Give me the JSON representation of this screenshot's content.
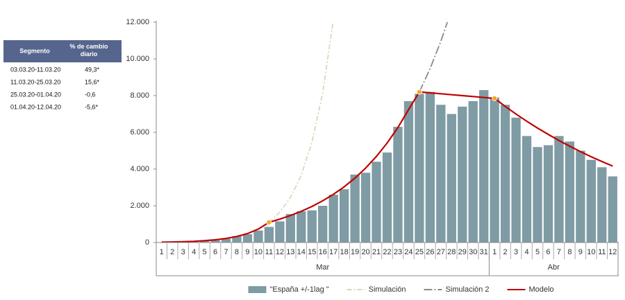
{
  "table": {
    "header": [
      "Segmento",
      "% de cambio diario"
    ],
    "rows": [
      [
        "03.03.20-11.03.20",
        "49,3*"
      ],
      [
        "11.03.20-25.03.20",
        "15,6*"
      ],
      [
        "25.03.20-01.04.20",
        "-0,6"
      ],
      [
        "01.04.20-12.04.20",
        "-5,6*"
      ]
    ]
  },
  "chart_data": {
    "type": "bar",
    "categories": [
      "1",
      "2",
      "3",
      "4",
      "5",
      "6",
      "7",
      "8",
      "9",
      "10",
      "11",
      "12",
      "13",
      "14",
      "15",
      "16",
      "17",
      "18",
      "19",
      "20",
      "21",
      "22",
      "23",
      "24",
      "25",
      "26",
      "27",
      "28",
      "29",
      "30",
      "31",
      "1",
      "2",
      "3",
      "4",
      "5",
      "6",
      "7",
      "8",
      "9",
      "10",
      "11",
      "12"
    ],
    "x_groups": [
      {
        "label": "Mar",
        "count": 31
      },
      {
        "label": "Abr",
        "count": 12
      }
    ],
    "ylim": [
      0,
      12000
    ],
    "yticks": [
      0,
      {
        "value": 2000,
        "label": "2.000"
      },
      {
        "value": 4000,
        "label": "4.000"
      },
      {
        "value": 6000,
        "label": "6.000"
      },
      {
        "value": 8000,
        "label": "8.000"
      },
      {
        "value": 10000,
        "label": "10.000"
      },
      {
        "value": 12000,
        "label": "12.000"
      }
    ],
    "series": [
      {
        "name": "\"España +/-1lag \"",
        "type": "bar",
        "color": "#7f9ba4",
        "values": [
          10,
          20,
          30,
          50,
          80,
          120,
          200,
          350,
          450,
          650,
          850,
          1150,
          1550,
          1700,
          1750,
          2000,
          2600,
          2900,
          3700,
          3800,
          4400,
          4900,
          6300,
          7700,
          8100,
          8200,
          7500,
          7000,
          7400,
          7700,
          8300,
          7900,
          7500,
          6800,
          5800,
          5200,
          5300,
          5800,
          5500,
          5000,
          4500,
          4100,
          3600
        ]
      },
      {
        "name": "Simulación",
        "type": "line",
        "color": "#d8d9b8",
        "dash": "7 3 2 3",
        "values": [
          null,
          null,
          null,
          null,
          null,
          null,
          null,
          null,
          null,
          null,
          1100,
          1640,
          2450,
          3660,
          5460,
          8150,
          12170,
          null,
          null,
          null,
          null,
          null,
          null,
          null,
          null,
          null,
          null,
          null,
          null,
          null,
          null,
          null,
          null,
          null,
          null,
          null,
          null,
          null,
          null,
          null,
          null,
          null,
          null
        ]
      },
      {
        "name": "Simulación 2",
        "type": "line",
        "color": "#8a8a8a",
        "dash": "12 3 2 3",
        "values": [
          null,
          null,
          null,
          null,
          null,
          null,
          null,
          null,
          null,
          null,
          null,
          null,
          null,
          null,
          null,
          null,
          null,
          null,
          null,
          null,
          null,
          null,
          null,
          null,
          8200,
          9480,
          10960,
          12670,
          null,
          null,
          null,
          null,
          null,
          null,
          null,
          null,
          null,
          null,
          null,
          null,
          null,
          null,
          null
        ]
      },
      {
        "name": "Modelo",
        "type": "line",
        "color": "#c00000",
        "marker_color": "#f5a623",
        "marker_points": [
          10,
          24,
          31
        ],
        "values": [
          20,
          30,
          44,
          66,
          98,
          147,
          219,
          327,
          488,
          729,
          1100,
          1272,
          1470,
          1699,
          1964,
          2271,
          2625,
          3034,
          3508,
          4055,
          4688,
          5419,
          6264,
          7242,
          8200,
          8150,
          8100,
          8050,
          8000,
          7950,
          7900,
          7850,
          7410,
          6995,
          6603,
          6234,
          5885,
          5555,
          5244,
          4950,
          4673,
          4411,
          4164
        ]
      }
    ]
  }
}
